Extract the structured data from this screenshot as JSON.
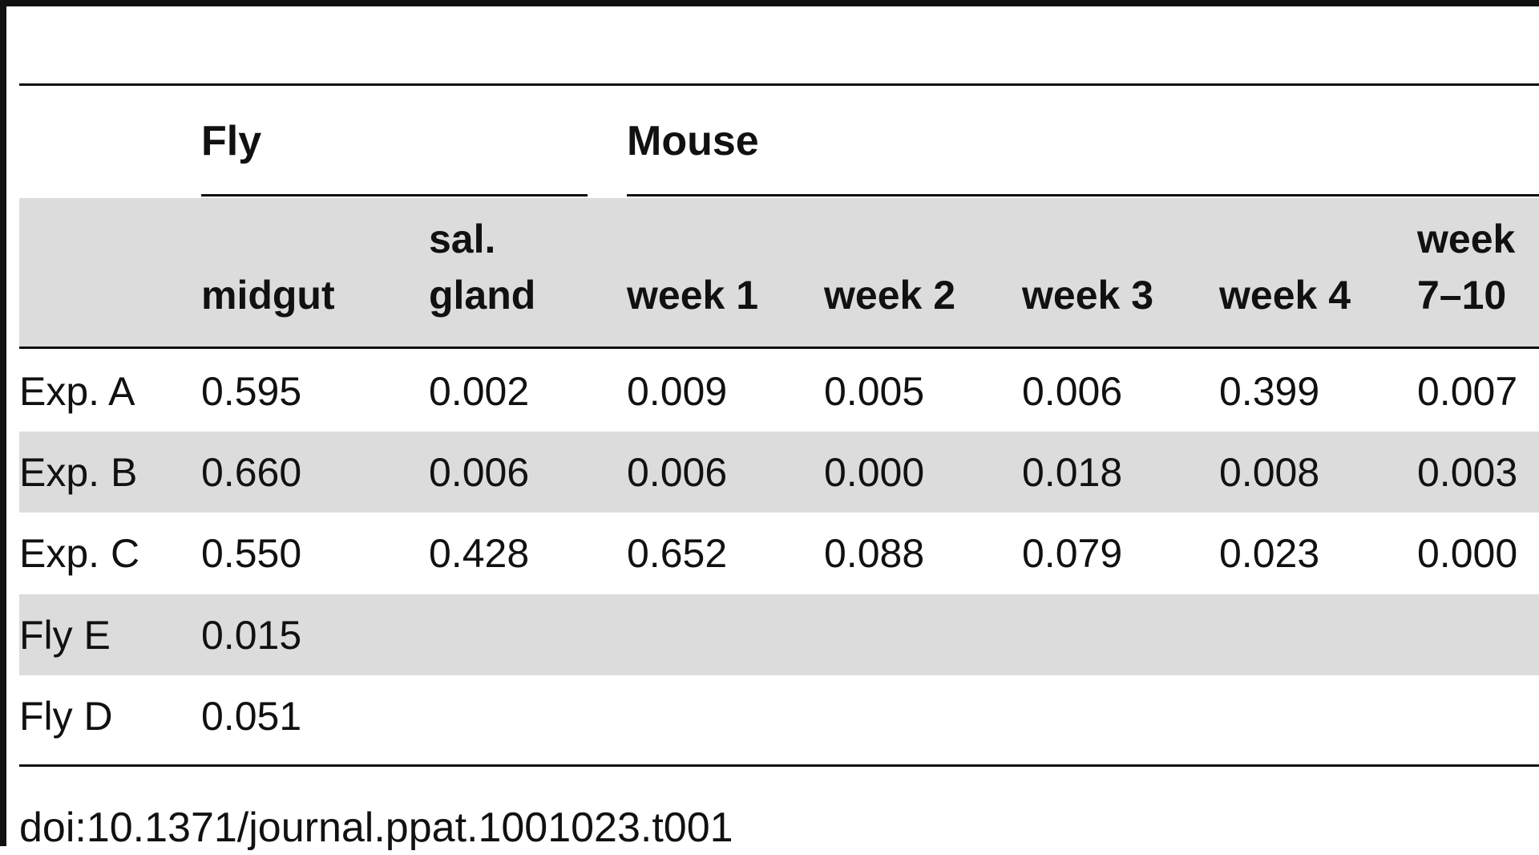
{
  "table": {
    "groups": {
      "fly": "Fly",
      "mouse": "Mouse"
    },
    "header": {
      "midgut": "midgut",
      "sal_gland_line1": "sal.",
      "sal_gland_line2": "gland",
      "week1": "week 1",
      "week2": "week 2",
      "week3": "week 3",
      "week4": "week 4",
      "week710_line1": "week",
      "week710_line2": "7–10"
    },
    "rows": [
      [
        "Exp. A",
        "0.595",
        "0.002",
        "0.009",
        "0.005",
        "0.006",
        "0.399",
        "0.007"
      ],
      [
        "Exp. B",
        "0.660",
        "0.006",
        "0.006",
        "0.000",
        "0.018",
        "0.008",
        "0.003"
      ],
      [
        "Exp. C",
        "0.550",
        "0.428",
        "0.652",
        "0.088",
        "0.079",
        "0.023",
        "0.000"
      ],
      [
        "Fly E",
        "0.015",
        "",
        "",
        "",
        "",
        "",
        ""
      ],
      [
        "Fly D",
        "0.051",
        "",
        "",
        "",
        "",
        "",
        ""
      ]
    ]
  },
  "footer": {
    "doi": "doi:10.1371/journal.ppat.1001023.t001"
  },
  "colors": {
    "stripe": "#dcdcdd",
    "text": "#111111"
  }
}
